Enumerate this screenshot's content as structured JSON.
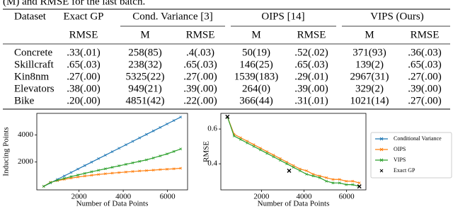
{
  "caption": "(M) and RMSE for the last batch.",
  "table": {
    "header": [
      "Dataset",
      "Exact GP",
      "Cond. Variance [3]",
      "OIPS [14]",
      "VIPS (Ours)"
    ],
    "subheader": [
      "RMSE",
      "M",
      "RMSE",
      "M",
      "RMSE",
      "M",
      "RMSE"
    ],
    "rows": [
      [
        "Concrete",
        ".33(.01)",
        "258(85)",
        ".4(.03)",
        "50(19)",
        ".52(.02)",
        "371(93)",
        ".36(.03)"
      ],
      [
        "Skillcraft",
        ".65(.03)",
        "238(32)",
        ".65(.03)",
        "146(25)",
        ".65(.03)",
        "139(2)",
        ".65(.03)"
      ],
      [
        "Kin8nm",
        ".27(.00)",
        "5325(22)",
        ".27(.00)",
        "1539(183)",
        ".29(.01)",
        "2967(31)",
        ".27(.00)"
      ],
      [
        "Elevators",
        ".38(.00)",
        "949(21)",
        ".39(.00)",
        "264(0)",
        ".39(.00)",
        "329(2)",
        ".39(.00)"
      ],
      [
        "Bike",
        ".20(.00)",
        "4851(42)",
        ".22(.00)",
        "366(44)",
        ".31(.01)",
        "1021(14)",
        ".27(.00)"
      ]
    ]
  },
  "chart_data": [
    {
      "type": "line",
      "x_label": "Number of Data Points",
      "y_label": "Inducing Points",
      "x": [
        400,
        710,
        1020,
        1330,
        1640,
        1950,
        2260,
        2570,
        2880,
        3190,
        3500,
        3810,
        4120,
        4430,
        4740,
        5050,
        5360,
        5670,
        5980,
        6290,
        6600
      ],
      "xlim": [
        90,
        6910
      ],
      "xticks": [
        2000,
        4000,
        6000
      ],
      "ylim": [
        -60,
        5600
      ],
      "yticks": [
        2000,
        4000
      ],
      "series": [
        {
          "name": "Conditional Variance",
          "color": "#1f77b4",
          "values": [
            200,
            456,
            713,
            969,
            1225,
            1481,
            1738,
            1994,
            2250,
            2506,
            2763,
            3019,
            3275,
            3531,
            3788,
            4044,
            4300,
            4556,
            4813,
            5069,
            5325
          ]
        },
        {
          "name": "OIPS",
          "color": "#ff7f0e",
          "values": [
            200,
            500,
            620,
            720,
            810,
            890,
            960,
            1020,
            1080,
            1130,
            1180,
            1220,
            1260,
            1300,
            1340,
            1370,
            1400,
            1440,
            1470,
            1500,
            1539
          ]
        },
        {
          "name": "VIPS",
          "color": "#2ca02c",
          "values": [
            200,
            480,
            650,
            790,
            920,
            1040,
            1160,
            1280,
            1390,
            1500,
            1610,
            1720,
            1830,
            1940,
            2050,
            2160,
            2300,
            2450,
            2600,
            2780,
            2967
          ]
        }
      ]
    },
    {
      "type": "line",
      "x_label": "Number of Data Points",
      "y_label": "RMSE",
      "x": [
        400,
        710,
        1020,
        1330,
        1640,
        1950,
        2260,
        2570,
        2880,
        3190,
        3500,
        3810,
        4120,
        4430,
        4740,
        5050,
        5360,
        5670,
        5980,
        6290,
        6600
      ],
      "xlim": [
        90,
        6910
      ],
      "xticks": [
        2000,
        4000,
        6000
      ],
      "ylim": [
        0.25,
        0.69
      ],
      "yticks": [
        0.4,
        0.6
      ],
      "series": [
        {
          "color": "#ff7f0e",
          "values": [
            0.67,
            0.57,
            0.55,
            0.53,
            0.51,
            0.49,
            0.47,
            0.45,
            0.43,
            0.41,
            0.39,
            0.37,
            0.36,
            0.34,
            0.33,
            0.32,
            0.31,
            0.31,
            0.3,
            0.3,
            0.29
          ]
        },
        {
          "color": "#2ca02c",
          "values": [
            0.67,
            0.56,
            0.54,
            0.52,
            0.5,
            0.48,
            0.46,
            0.44,
            0.42,
            0.4,
            0.38,
            0.36,
            0.34,
            0.33,
            0.32,
            0.3,
            0.29,
            0.29,
            0.28,
            0.28,
            0.27
          ]
        },
        {
          "name": "Exact GP",
          "color": "#000000",
          "mode": "markers",
          "x": [
            400,
            3300,
            6600
          ],
          "values": [
            0.67,
            0.36,
            0.27
          ]
        }
      ]
    }
  ]
}
